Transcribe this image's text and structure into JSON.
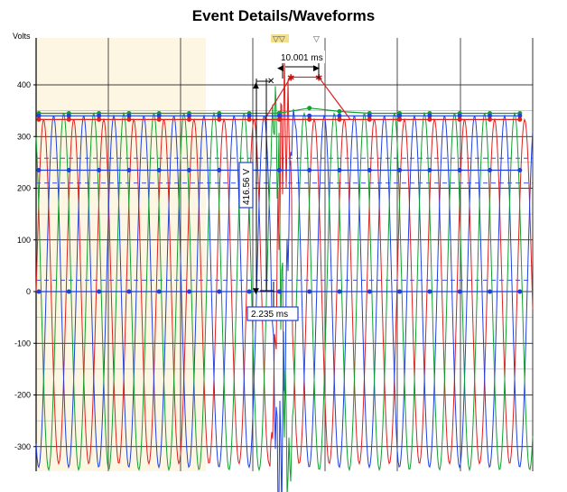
{
  "chart_data": {
    "type": "line",
    "title": "Event Details/Waveforms",
    "ylabel": "Volts",
    "xlabel": "",
    "ylim": [
      -345,
      470
    ],
    "yticks": [
      400,
      300,
      200,
      100,
      0,
      -100,
      -200,
      -300
    ],
    "grid": true,
    "colors": {
      "phase_a": "#dd2020",
      "phase_b": "#2040e0",
      "phase_c": "#10a030",
      "highlight": "#fdf6e3"
    },
    "series": [
      {
        "key": "phase_a",
        "peak": 333,
        "rms": 235
      },
      {
        "key": "phase_b",
        "peak": 340,
        "rms": 235
      },
      {
        "key": "phase_c",
        "peak": 345,
        "rms": 235
      }
    ],
    "reference_lines": [
      258,
      210,
      22
    ],
    "cursors": {
      "time_delta_label": "10.001 ms",
      "time_delta_small_label": "2.235 ms",
      "voltage_delta_label": "416.56 V"
    }
  }
}
